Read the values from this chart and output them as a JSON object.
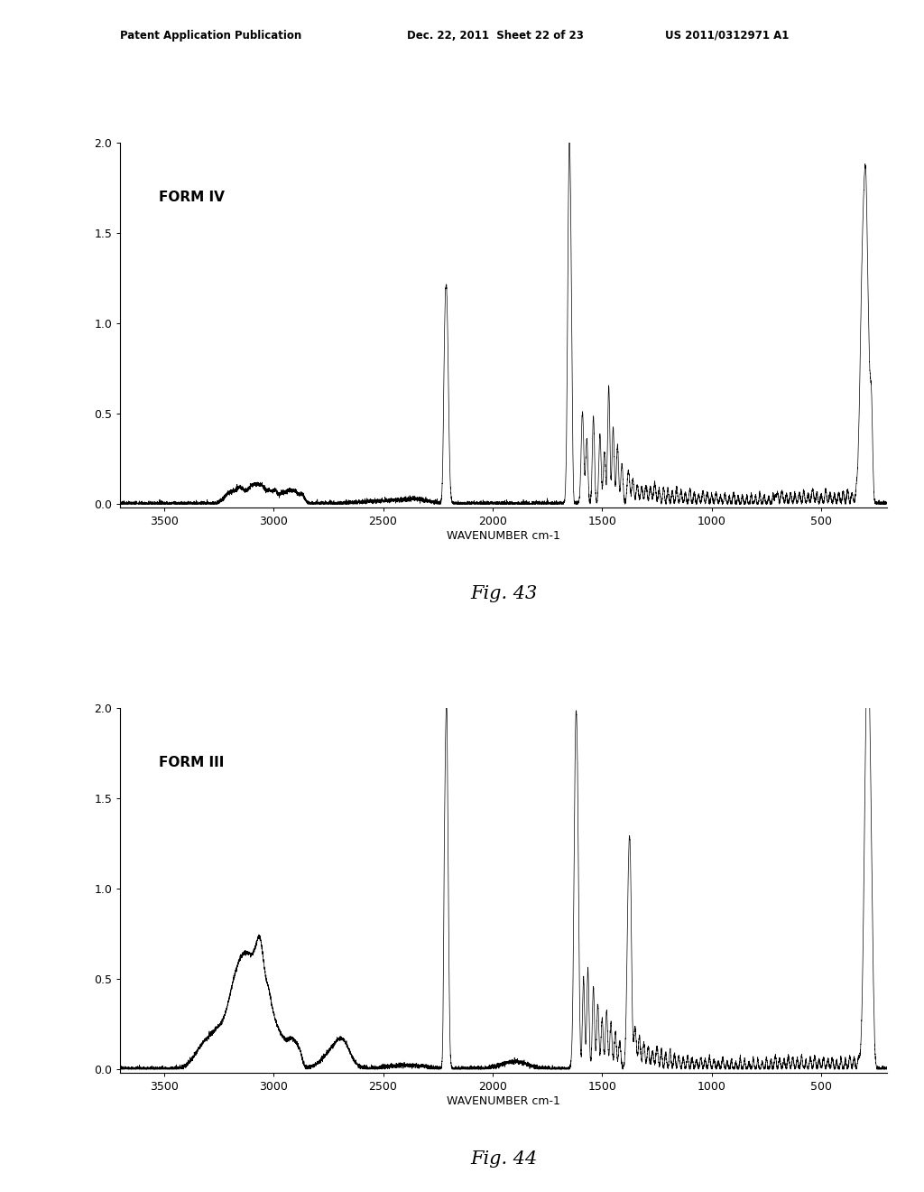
{
  "fig43_label": "FORM IV",
  "fig44_label": "FORM III",
  "fig43_caption": "Fig. 43",
  "fig44_caption": "Fig. 44",
  "xlabel": "WAVENUMBER cm-1",
  "xlim_left": 3700,
  "xlim_right": 200,
  "ylim_top": 2.0,
  "ylim_bottom": -0.02,
  "yticks": [
    0.0,
    0.5,
    1.0,
    1.5,
    2.0
  ],
  "xticks": [
    3500,
    3000,
    2500,
    2000,
    1500,
    1000,
    500
  ],
  "line_color": "#000000",
  "background_color": "#ffffff",
  "header_left": "Patent Application Publication",
  "header_mid": "Dec. 22, 2011  Sheet 22 of 23",
  "header_right": "US 2011/0312971 A1"
}
